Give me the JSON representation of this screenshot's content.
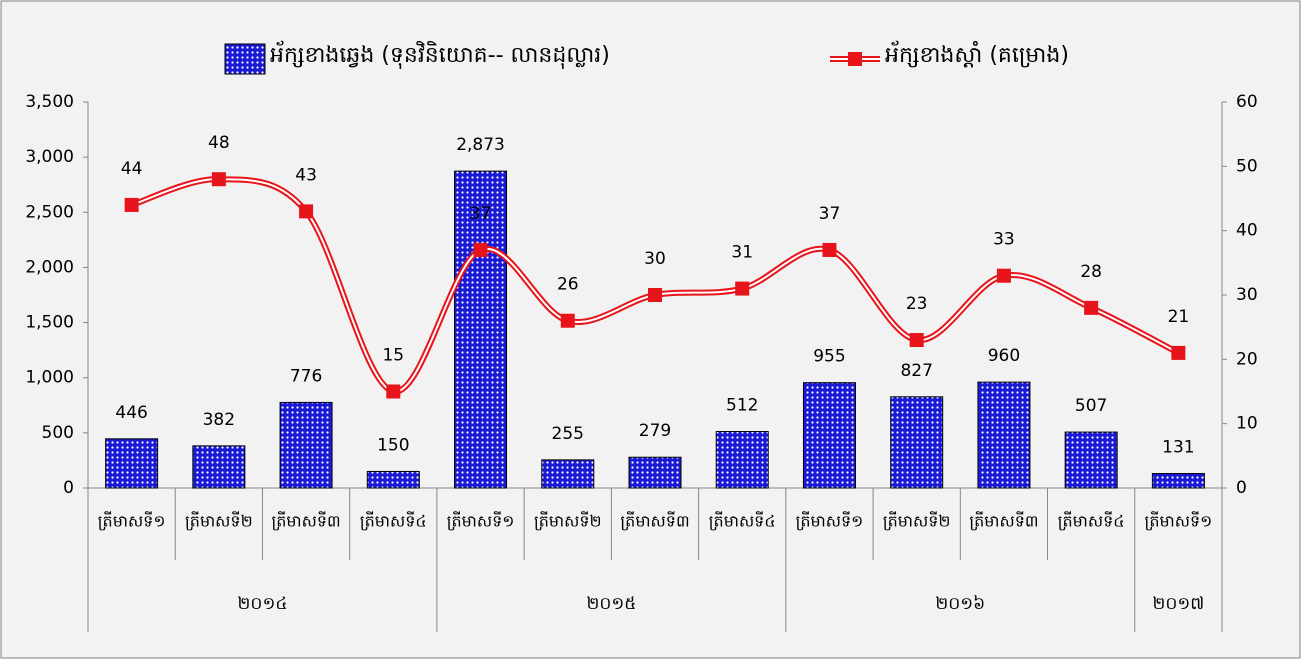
{
  "chart_data": {
    "type": "bar_line",
    "groups": [
      {
        "label": "២០១៤",
        "categories": [
          "ត្រីមាសទី១",
          "ត្រីមាសទី២",
          "ត្រីមាសទី៣",
          "ត្រីមាសទី៤"
        ]
      },
      {
        "label": "២០១៥",
        "categories": [
          "ត្រីមាសទី១",
          "ត្រីមាសទី២",
          "ត្រីមាសទី៣",
          "ត្រីមាសទី៤"
        ]
      },
      {
        "label": "២០១៦",
        "categories": [
          "ត្រីមាសទី១",
          "ត្រីមាសទី២",
          "ត្រីមាសទី៣",
          "ត្រីមាសទី៤"
        ]
      },
      {
        "label": "២០១៧",
        "categories": [
          "ត្រីមាសទី១"
        ]
      }
    ],
    "series": [
      {
        "name": "អ័ក្សខាងឆ្វេង (ទុនវិនិយោគ-- លានដុល្លារ)",
        "type": "bar",
        "color": "#1a1ad6",
        "values": [
          446,
          382,
          776,
          150,
          2873,
          255,
          279,
          512,
          955,
          827,
          960,
          507,
          131
        ],
        "value_labels": [
          "446",
          "382",
          "776",
          "150",
          "2,873",
          "255",
          "279",
          "512",
          "955",
          "827",
          "960",
          "507",
          "131"
        ]
      },
      {
        "name": "អ័ក្សខាងស្តាំ (គម្រោង)",
        "type": "line",
        "axis": "y2",
        "color": "#e8141b",
        "values": [
          44,
          48,
          43,
          15,
          37,
          26,
          30,
          31,
          37,
          23,
          33,
          28,
          21
        ]
      }
    ],
    "ylim": [
      0,
      3500
    ],
    "yticks": [
      0,
      500,
      {
        "value": 1000,
        "label": "1,000"
      },
      {
        "value": 1500,
        "label": "1,500"
      },
      {
        "value": 2000,
        "label": "2,000"
      },
      {
        "value": 2500,
        "label": "2,500"
      },
      {
        "value": 3000,
        "label": "3,000"
      },
      {
        "value": 3500,
        "label": "3,500"
      }
    ],
    "y2lim": [
      0,
      60
    ],
    "y2ticks": [
      0,
      10,
      20,
      30,
      40,
      50,
      60
    ],
    "grid": false,
    "legend": "top"
  }
}
